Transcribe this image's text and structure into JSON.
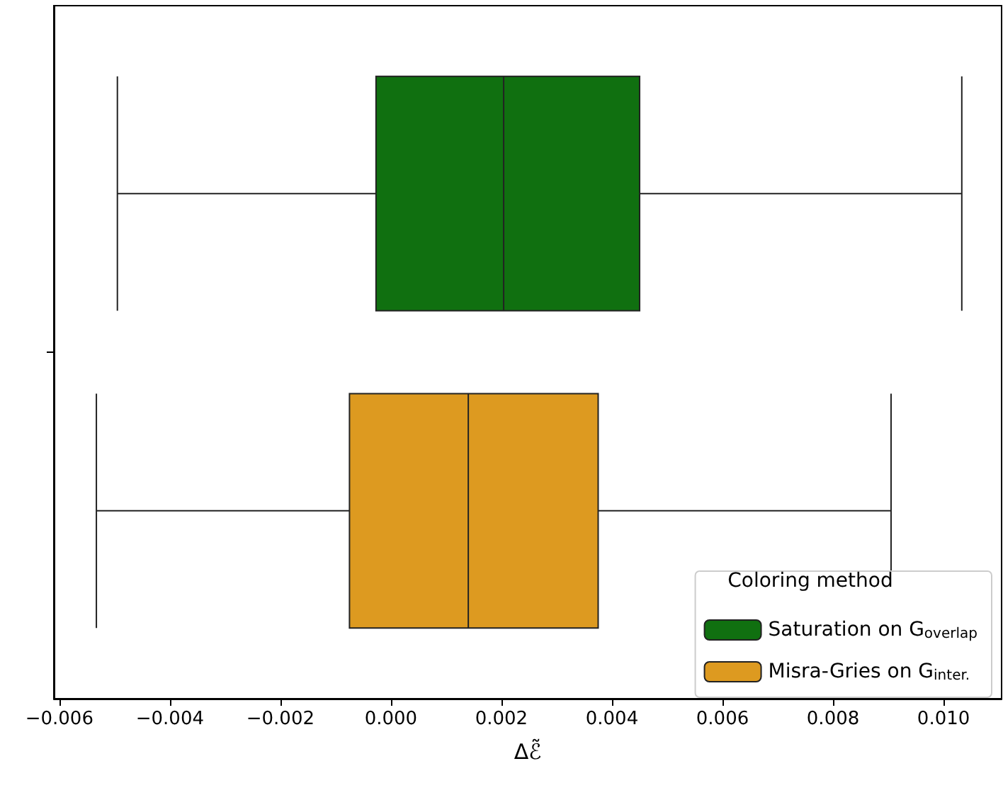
{
  "chart_data": {
    "type": "box",
    "orientation": "horizontal",
    "categories": [
      null
    ],
    "series": [
      {
        "name": "Saturation on G$_{overlap}$",
        "color": "#107010",
        "boxes": [
          {
            "low": -0.00495,
            "q1": -0.00027,
            "median": 0.00204,
            "q3": 0.0045,
            "high": 0.01033
          }
        ]
      },
      {
        "name": "Misra-Gries on G$_{inter.}$",
        "color": "#dd9a20",
        "boxes": [
          {
            "low": -0.00533,
            "q1": -0.00075,
            "median": 0.0014,
            "q3": 0.00375,
            "high": 0.00905
          }
        ]
      }
    ],
    "xlim": [
      -0.0061,
      0.01105
    ],
    "xticks": [
      {
        "value": -0.006,
        "label": "−0.006"
      },
      {
        "value": -0.004,
        "label": "−0.004"
      },
      {
        "value": -0.002,
        "label": "−0.002"
      },
      {
        "value": 0,
        "label": "0.000"
      },
      {
        "value": 0.002,
        "label": "0.002"
      },
      {
        "value": 0.004,
        "label": "0.004"
      },
      {
        "value": 0.006,
        "label": "0.006"
      },
      {
        "value": 0.008,
        "label": "0.008"
      },
      {
        "value": 0.01,
        "label": "0.010"
      }
    ],
    "xlabel": "Δℰ̃",
    "legend_title": "Coloring method",
    "legend": "bottom right",
    "tick_labels": "x",
    "grid": false
  }
}
